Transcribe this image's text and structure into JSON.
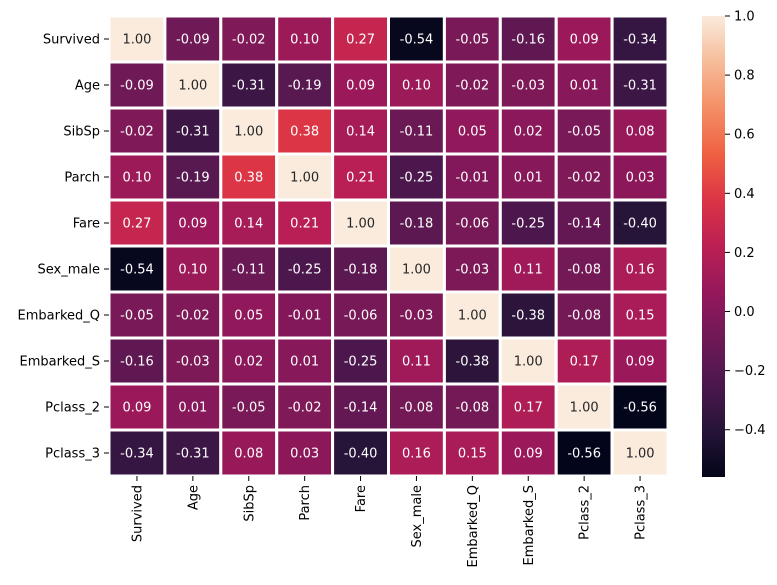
{
  "chart_data": {
    "type": "heatmap",
    "title": "",
    "xlabel": "",
    "ylabel": "",
    "rows": [
      "Survived",
      "Age",
      "SibSp",
      "Parch",
      "Fare",
      "Sex_male",
      "Embarked_Q",
      "Embarked_S",
      "Pclass_2",
      "Pclass_3"
    ],
    "columns": [
      "Survived",
      "Age",
      "SibSp",
      "Parch",
      "Fare",
      "Sex_male",
      "Embarked_Q",
      "Embarked_S",
      "Pclass_2",
      "Pclass_3"
    ],
    "values": [
      [
        1.0,
        -0.09,
        -0.02,
        0.1,
        0.27,
        -0.54,
        -0.05,
        -0.16,
        0.09,
        -0.34
      ],
      [
        -0.09,
        1.0,
        -0.31,
        -0.19,
        0.09,
        0.1,
        -0.02,
        -0.03,
        0.01,
        -0.31
      ],
      [
        -0.02,
        -0.31,
        1.0,
        0.38,
        0.14,
        -0.11,
        0.05,
        0.02,
        -0.05,
        0.08
      ],
      [
        0.1,
        -0.19,
        0.38,
        1.0,
        0.21,
        -0.25,
        -0.01,
        0.01,
        -0.02,
        0.03
      ],
      [
        0.27,
        0.09,
        0.14,
        0.21,
        1.0,
        -0.18,
        -0.06,
        -0.25,
        -0.14,
        -0.4
      ],
      [
        -0.54,
        0.1,
        -0.11,
        -0.25,
        -0.18,
        1.0,
        -0.03,
        0.11,
        -0.08,
        0.16
      ],
      [
        -0.05,
        -0.02,
        0.05,
        -0.01,
        -0.06,
        -0.03,
        1.0,
        -0.38,
        -0.08,
        0.15
      ],
      [
        -0.16,
        -0.03,
        0.02,
        0.01,
        -0.25,
        0.11,
        -0.38,
        1.0,
        0.17,
        0.09
      ],
      [
        0.09,
        0.01,
        -0.05,
        -0.02,
        -0.14,
        -0.08,
        -0.08,
        0.17,
        1.0,
        -0.56
      ],
      [
        -0.34,
        -0.31,
        0.08,
        0.03,
        -0.4,
        0.16,
        0.15,
        0.09,
        -0.56,
        1.0
      ]
    ],
    "value_format": "2 decimals",
    "colormap": "rocket",
    "color_range": [
      -0.56,
      1.0
    ],
    "colorbar_ticks": [
      "1.0",
      "0.8",
      "0.6",
      "0.4",
      "0.2",
      "0.0",
      "−0.2",
      "−0.4"
    ],
    "colorbar_tick_values": [
      1.0,
      0.8,
      0.6,
      0.4,
      0.2,
      0.0,
      -0.2,
      -0.4
    ],
    "cell_border_color": "#ffffff",
    "legend": "colorbar right"
  }
}
